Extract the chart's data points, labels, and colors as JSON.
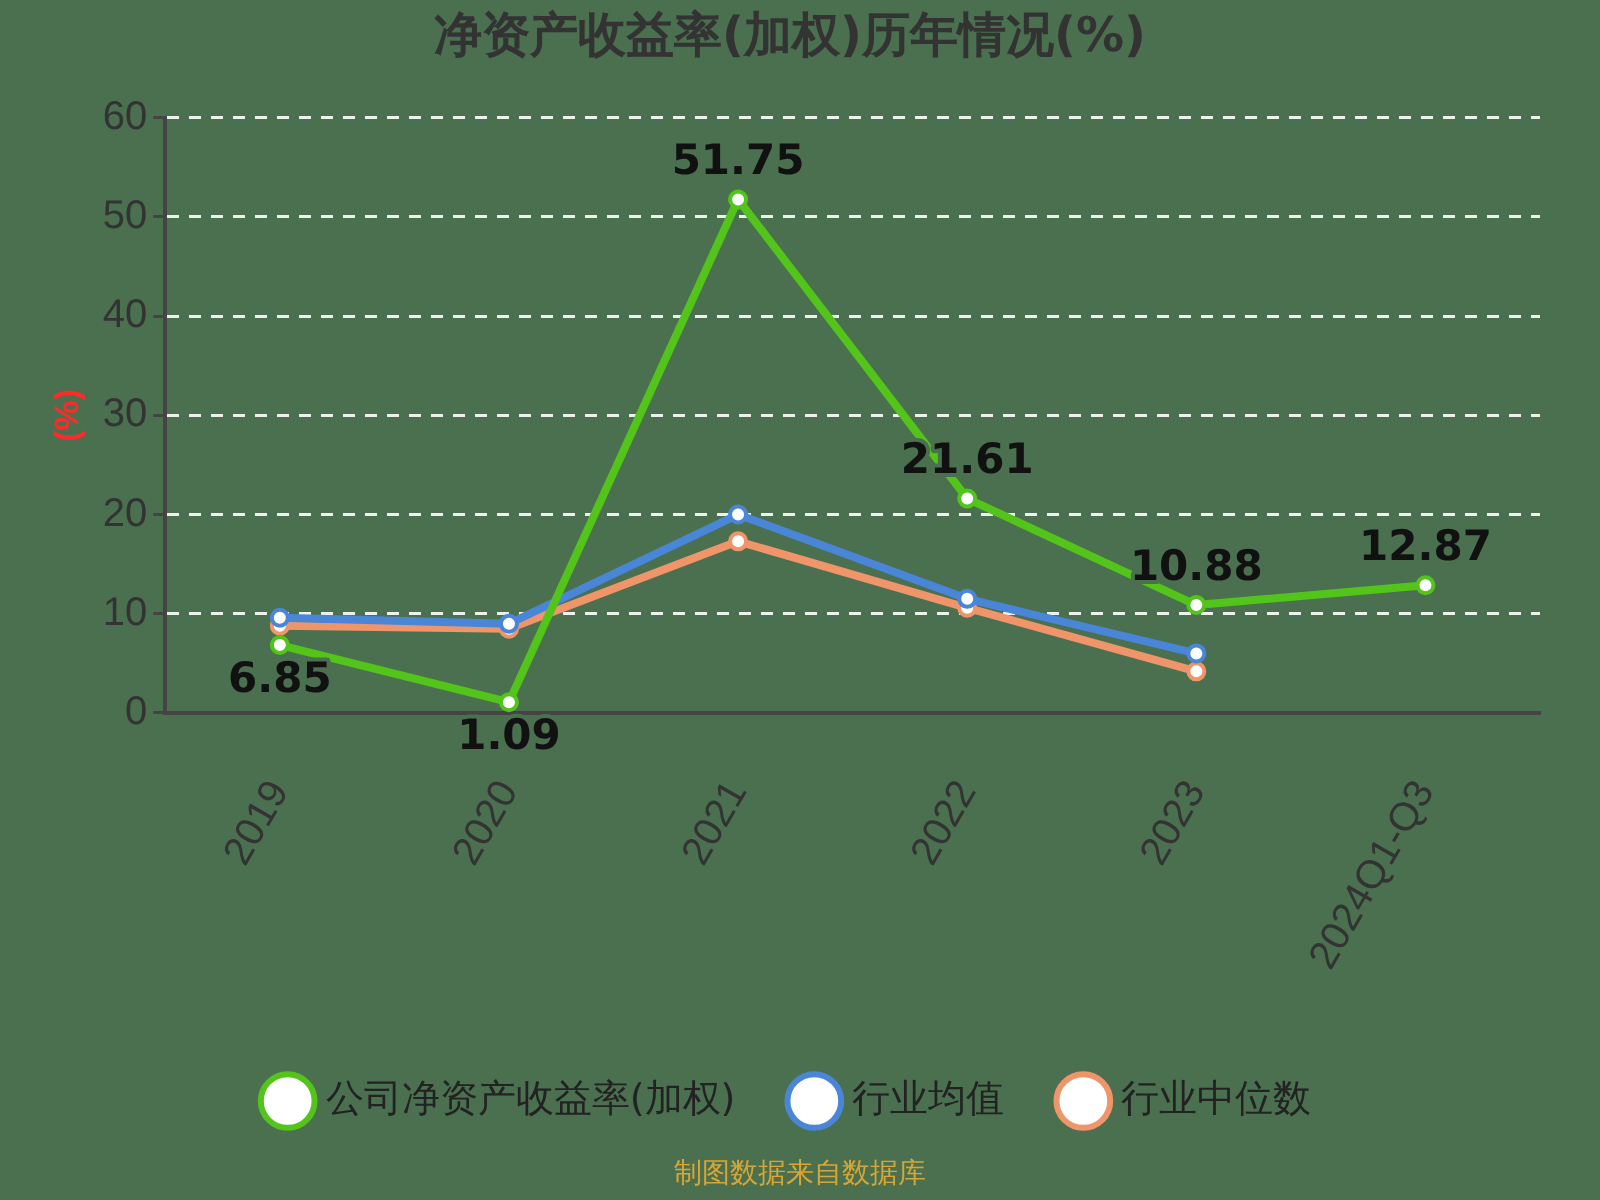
{
  "chart_data": {
    "type": "line",
    "title": "净资产收益率(加权)历年情况(%)",
    "ylabel": "(%)",
    "categories": [
      "2019",
      "2020",
      "2021",
      "2022",
      "2023",
      "2024Q1-Q3"
    ],
    "series": [
      {
        "name": "公司净资产收益率(加权)",
        "color": "#52c41a",
        "values": [
          6.85,
          1.09,
          51.75,
          21.61,
          10.88,
          12.87
        ],
        "value_labels": [
          "6.85",
          "1.09",
          "51.75",
          "21.61",
          "10.88",
          "12.87"
        ]
      },
      {
        "name": "行业均值",
        "color": "#4a86d8",
        "values": [
          9.6,
          9.0,
          20.0,
          11.5,
          6.0,
          null
        ]
      },
      {
        "name": "行业中位数",
        "color": "#f0956a",
        "values": [
          8.8,
          8.5,
          17.3,
          10.6,
          4.2,
          null
        ]
      }
    ],
    "ylim": [
      0,
      60
    ],
    "yticks": [
      0,
      10,
      20,
      30,
      40,
      50,
      60
    ],
    "grid": "y",
    "legend": "bottom",
    "marker": "circle",
    "line_style": "solid",
    "annotations": [
      "制图数据来自数据库"
    ]
  }
}
